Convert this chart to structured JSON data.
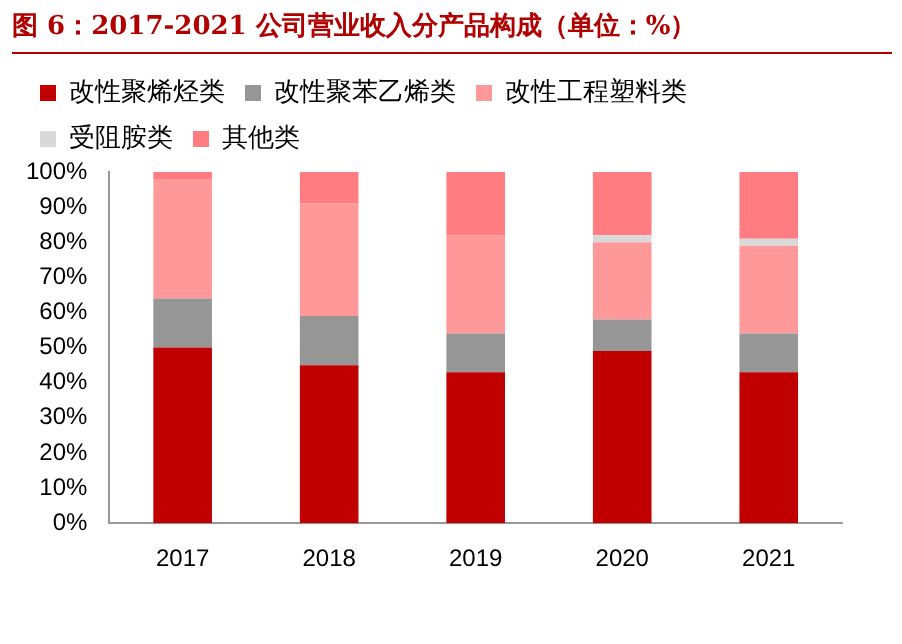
{
  "chart_data": {
    "type": "bar",
    "title": "图 6：2017-2021 公司营业收入分产品构成（单位：%）",
    "categories": [
      "2017",
      "2018",
      "2019",
      "2020",
      "2021"
    ],
    "stacked": true,
    "ylim": [
      0,
      100
    ],
    "yticks": [
      {
        "value": 0,
        "label": "0%"
      },
      {
        "value": 10,
        "label": "10%"
      },
      {
        "value": 20,
        "label": "20%"
      },
      {
        "value": 30,
        "label": "30%"
      },
      {
        "value": 40,
        "label": "40%"
      },
      {
        "value": 50,
        "label": "50%"
      },
      {
        "value": 60,
        "label": "60%"
      },
      {
        "value": 70,
        "label": "70%"
      },
      {
        "value": 80,
        "label": "80%"
      },
      {
        "value": 90,
        "label": "90%"
      },
      {
        "value": 100,
        "label": "100%"
      }
    ],
    "grid": false,
    "legend": "top",
    "series": [
      {
        "name": "改性聚烯烃类",
        "color": "#c00000",
        "values": [
          50,
          45,
          43,
          49,
          43
        ]
      },
      {
        "name": "改性聚苯乙烯类",
        "color": "#969696",
        "values": [
          14,
          14,
          11,
          9,
          11
        ]
      },
      {
        "name": "改性工程塑料类",
        "color": "#ff9999",
        "values": [
          34,
          32,
          28,
          22,
          25
        ]
      },
      {
        "name": "受阻胺类",
        "color": "#d9d9d9",
        "values": [
          0,
          0,
          0,
          2,
          2
        ]
      },
      {
        "name": "其他类",
        "color": "#ff7c80",
        "values": [
          2,
          9,
          18,
          18,
          19
        ]
      }
    ]
  }
}
